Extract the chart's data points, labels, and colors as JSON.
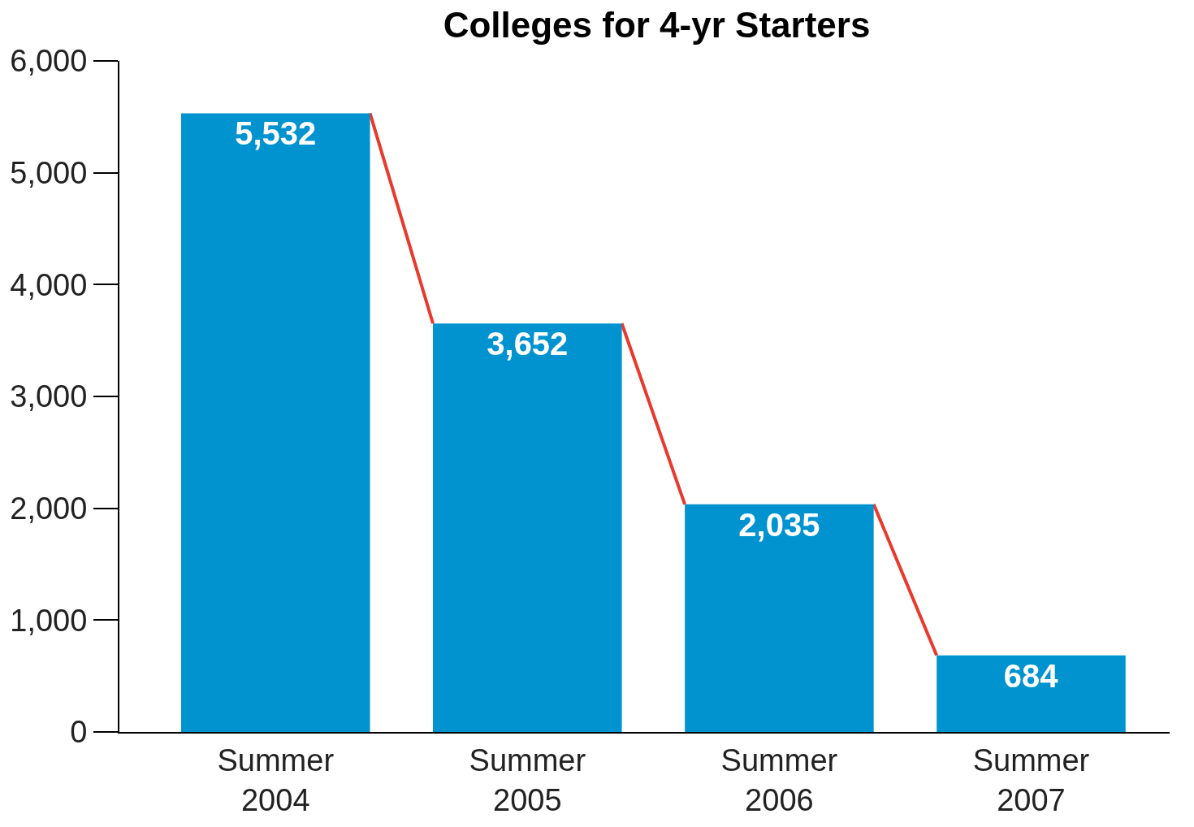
{
  "chart_data": {
    "type": "bar",
    "title": "Colleges for 4-yr Starters",
    "categories": [
      "Summer\n2004",
      "Summer\n2005",
      "Summer\n2006",
      "Summer\n2007"
    ],
    "series": [
      {
        "color": "#0093d0",
        "values": [
          5532,
          3652,
          2035,
          684
        ],
        "value_labels": [
          "5,532",
          "3,652",
          "2,035",
          "684"
        ]
      }
    ],
    "ylim": [
      0,
      6000
    ],
    "yticks": [
      {
        "value": 0,
        "label": "0"
      },
      {
        "value": 1000,
        "label": "1,000"
      },
      {
        "value": 2000,
        "label": "2,000"
      },
      {
        "value": 3000,
        "label": "3,000"
      },
      {
        "value": 4000,
        "label": "4,000"
      },
      {
        "value": 5000,
        "label": "5,000"
      },
      {
        "value": 6000,
        "label": "6,000"
      }
    ]
  }
}
